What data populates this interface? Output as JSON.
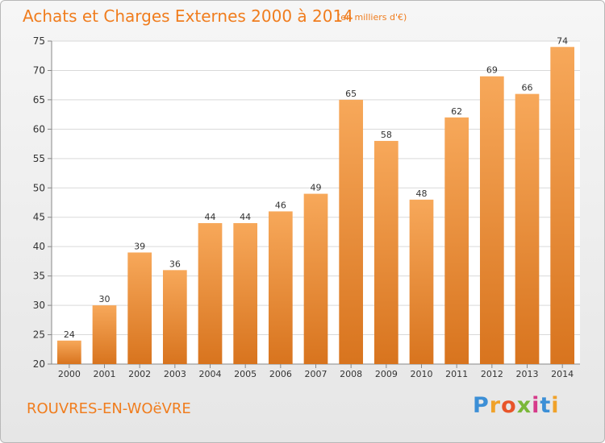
{
  "header": {
    "title": "Achats et Charges Externes 2000 à 2014",
    "subtitle": "(en milliers d'€)"
  },
  "footer": {
    "commune": "ROUVRES-EN-WOëVRE",
    "logo": "Proxiti"
  },
  "colors": {
    "title": "#f07d1e",
    "bar_light": "#f7a85a",
    "bar_dark": "#d8741e",
    "grid": "#d9d9d9",
    "axis_text": "#333333"
  },
  "chart_data": {
    "type": "bar",
    "categories": [
      "2000",
      "2001",
      "2002",
      "2003",
      "2004",
      "2005",
      "2006",
      "2007",
      "2008",
      "2009",
      "2010",
      "2011",
      "2012",
      "2013",
      "2014"
    ],
    "values": [
      24,
      30,
      39,
      36,
      44,
      44,
      46,
      49,
      65,
      58,
      48,
      62,
      69,
      66,
      74
    ],
    "title": "Achats et Charges Externes 2000 à 2014",
    "subtitle": "(en milliers d'€)",
    "ylim": [
      20,
      75
    ],
    "yticks": [
      20,
      25,
      30,
      35,
      40,
      45,
      50,
      55,
      60,
      65,
      70,
      75
    ],
    "grid": true
  }
}
